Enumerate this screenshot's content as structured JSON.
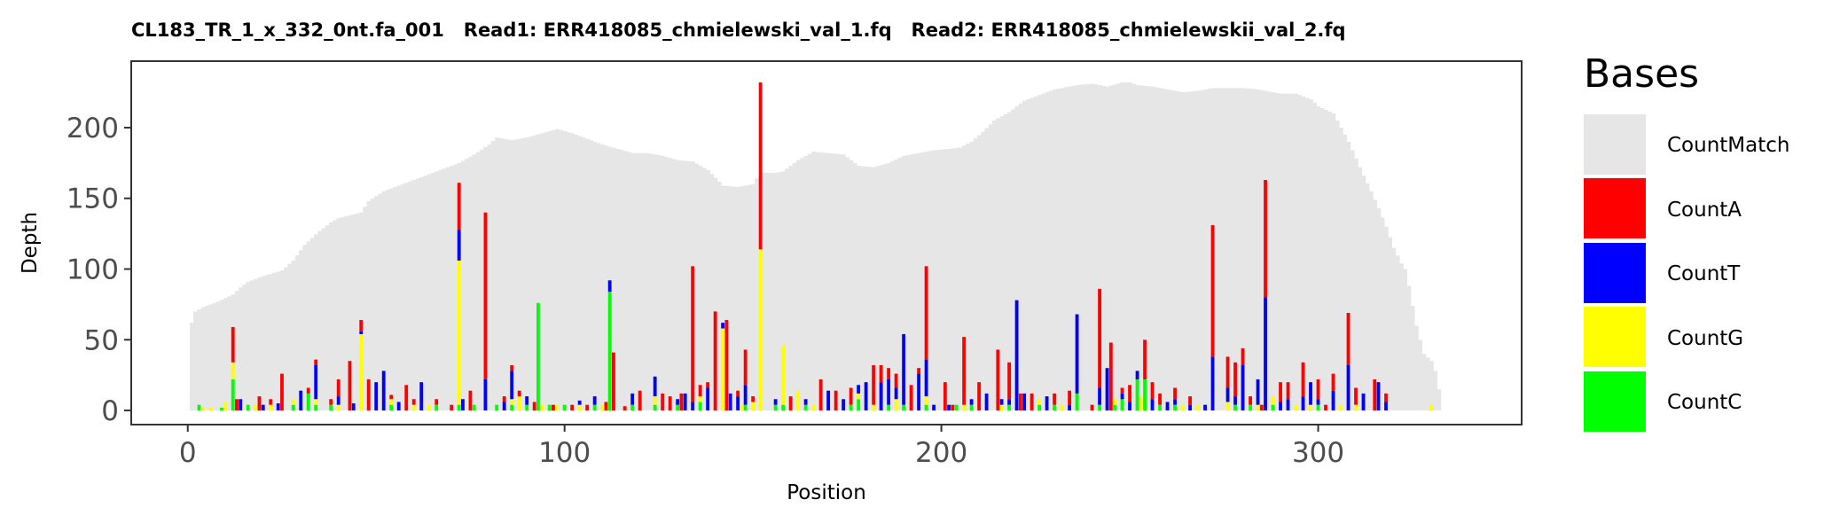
{
  "chart_data": {
    "type": "bar",
    "title": "CL183_TR_1_x_332_0nt.fa_001   Read1: ERR418085_chmielewski_val_1.fq   Read2: ERR418085_chmielewskii_val_2.fq",
    "xlabel": "Position",
    "ylabel": "Depth",
    "xlim": [
      -15,
      354
    ],
    "ylim": [
      -10,
      247
    ],
    "xticks": [
      0,
      100,
      200,
      300
    ],
    "yticks": [
      0,
      50,
      100,
      150,
      200
    ],
    "grid": false,
    "stacked": true,
    "legend": {
      "title": "Bases",
      "placement": "right",
      "entries": [
        "CountMatch",
        "CountA",
        "CountT",
        "CountG",
        "CountC"
      ]
    },
    "colors": {
      "CountMatch": "#e6e6e6",
      "CountA": "#ff0000",
      "CountT": "#0000ff",
      "CountG": "#ffff00",
      "CountC": "#00ff00"
    },
    "match_depth_keypoints": [
      [
        1,
        62
      ],
      [
        2,
        70
      ],
      [
        4,
        73
      ],
      [
        8,
        77
      ],
      [
        12,
        82
      ],
      [
        14,
        87
      ],
      [
        16,
        91
      ],
      [
        20,
        95
      ],
      [
        25,
        99
      ],
      [
        28,
        106
      ],
      [
        31,
        117
      ],
      [
        35,
        127
      ],
      [
        38,
        133
      ],
      [
        40,
        136
      ],
      [
        46,
        140
      ],
      [
        48,
        148
      ],
      [
        52,
        155
      ],
      [
        56,
        159
      ],
      [
        60,
        163
      ],
      [
        64,
        167
      ],
      [
        68,
        171
      ],
      [
        72,
        175
      ],
      [
        76,
        181
      ],
      [
        80,
        188
      ],
      [
        82,
        193
      ],
      [
        86,
        191
      ],
      [
        90,
        193
      ],
      [
        94,
        196
      ],
      [
        98,
        199
      ],
      [
        102,
        196
      ],
      [
        106,
        192
      ],
      [
        110,
        188
      ],
      [
        114,
        185
      ],
      [
        118,
        182
      ],
      [
        122,
        182
      ],
      [
        126,
        180
      ],
      [
        130,
        177
      ],
      [
        134,
        176
      ],
      [
        138,
        170
      ],
      [
        142,
        159
      ],
      [
        146,
        158
      ],
      [
        150,
        160
      ],
      [
        152,
        168
      ],
      [
        156,
        168
      ],
      [
        158,
        169
      ],
      [
        162,
        177
      ],
      [
        166,
        183
      ],
      [
        170,
        182
      ],
      [
        174,
        181
      ],
      [
        178,
        173
      ],
      [
        182,
        172
      ],
      [
        186,
        175
      ],
      [
        190,
        180
      ],
      [
        194,
        182
      ],
      [
        198,
        184
      ],
      [
        202,
        185
      ],
      [
        205,
        186
      ],
      [
        208,
        190
      ],
      [
        211,
        197
      ],
      [
        214,
        205
      ],
      [
        218,
        211
      ],
      [
        222,
        219
      ],
      [
        226,
        223
      ],
      [
        230,
        227
      ],
      [
        234,
        229
      ],
      [
        236,
        230
      ],
      [
        240,
        231
      ],
      [
        244,
        229
      ],
      [
        248,
        232
      ],
      [
        250,
        232
      ],
      [
        252,
        230
      ],
      [
        256,
        229
      ],
      [
        260,
        227
      ],
      [
        264,
        225
      ],
      [
        268,
        226
      ],
      [
        272,
        228
      ],
      [
        276,
        228
      ],
      [
        280,
        228
      ],
      [
        284,
        227
      ],
      [
        286,
        226
      ],
      [
        290,
        224
      ],
      [
        294,
        224
      ],
      [
        298,
        220
      ],
      [
        300,
        215
      ],
      [
        304,
        210
      ],
      [
        306,
        200
      ],
      [
        308,
        190
      ],
      [
        310,
        178
      ],
      [
        312,
        166
      ],
      [
        314,
        155
      ],
      [
        316,
        143
      ],
      [
        318,
        130
      ],
      [
        320,
        115
      ],
      [
        322,
        104
      ],
      [
        323,
        100
      ],
      [
        324,
        88
      ],
      [
        326,
        60
      ],
      [
        328,
        40
      ],
      [
        330,
        35
      ],
      [
        331,
        28
      ],
      [
        332,
        15
      ]
    ],
    "mismatch_series": {
      "CountA": [
        [
          12,
          25
        ],
        [
          13,
          8
        ],
        [
          19,
          10
        ],
        [
          22,
          4
        ],
        [
          25,
          26
        ],
        [
          32,
          4
        ],
        [
          34,
          4
        ],
        [
          38,
          4
        ],
        [
          40,
          12
        ],
        [
          43,
          35
        ],
        [
          46,
          8
        ],
        [
          48,
          22
        ],
        [
          54,
          3
        ],
        [
          58,
          18
        ],
        [
          60,
          4
        ],
        [
          66,
          4
        ],
        [
          70,
          4
        ],
        [
          72,
          33
        ],
        [
          75,
          14
        ],
        [
          79,
          118
        ],
        [
          84,
          4
        ],
        [
          86,
          4
        ],
        [
          88,
          4
        ],
        [
          92,
          6
        ],
        [
          97,
          4
        ],
        [
          102,
          4
        ],
        [
          106,
          4
        ],
        [
          111,
          6
        ],
        [
          113,
          41
        ],
        [
          116,
          3
        ],
        [
          120,
          14
        ],
        [
          126,
          12
        ],
        [
          128,
          10
        ],
        [
          131,
          12
        ],
        [
          134,
          96
        ],
        [
          136,
          8
        ],
        [
          138,
          4
        ],
        [
          140,
          70
        ],
        [
          143,
          64
        ],
        [
          146,
          4
        ],
        [
          148,
          25
        ],
        [
          150,
          4
        ],
        [
          152,
          118
        ],
        [
          160,
          10
        ],
        [
          168,
          22
        ],
        [
          172,
          14
        ],
        [
          176,
          12
        ],
        [
          182,
          28
        ],
        [
          184,
          12
        ],
        [
          186,
          8
        ],
        [
          188,
          10
        ],
        [
          192,
          18
        ],
        [
          194,
          4
        ],
        [
          196,
          66
        ],
        [
          201,
          20
        ],
        [
          203,
          4
        ],
        [
          206,
          48
        ],
        [
          210,
          20
        ],
        [
          215,
          43
        ],
        [
          218,
          26
        ],
        [
          221,
          12
        ],
        [
          224,
          12
        ],
        [
          230,
          8
        ],
        [
          234,
          10
        ],
        [
          240,
          4
        ],
        [
          242,
          70
        ],
        [
          245,
          48
        ],
        [
          248,
          4
        ],
        [
          250,
          12
        ],
        [
          254,
          28
        ],
        [
          256,
          12
        ],
        [
          258,
          8
        ],
        [
          262,
          8
        ],
        [
          266,
          6
        ],
        [
          272,
          93
        ],
        [
          276,
          22
        ],
        [
          278,
          24
        ],
        [
          280,
          12
        ],
        [
          282,
          6
        ],
        [
          285,
          4
        ],
        [
          286,
          83
        ],
        [
          290,
          14
        ],
        [
          292,
          12
        ],
        [
          296,
          24
        ],
        [
          300,
          14
        ],
        [
          302,
          4
        ],
        [
          304,
          12
        ],
        [
          308,
          37
        ],
        [
          310,
          12
        ],
        [
          315,
          22
        ],
        [
          318,
          6
        ]
      ],
      "CountT": [
        [
          14,
          8
        ],
        [
          20,
          4
        ],
        [
          24,
          5
        ],
        [
          30,
          14
        ],
        [
          34,
          24
        ],
        [
          40,
          6
        ],
        [
          44,
          5
        ],
        [
          46,
          2
        ],
        [
          50,
          20
        ],
        [
          52,
          28
        ],
        [
          56,
          6
        ],
        [
          62,
          20
        ],
        [
          72,
          22
        ],
        [
          73,
          8
        ],
        [
          79,
          22
        ],
        [
          84,
          6
        ],
        [
          86,
          20
        ],
        [
          90,
          6
        ],
        [
          104,
          3
        ],
        [
          108,
          6
        ],
        [
          112,
          8
        ],
        [
          118,
          8
        ],
        [
          124,
          14
        ],
        [
          130,
          4
        ],
        [
          132,
          12
        ],
        [
          134,
          6
        ],
        [
          138,
          16
        ],
        [
          142,
          4
        ],
        [
          144,
          12
        ],
        [
          146,
          10
        ],
        [
          148,
          14
        ],
        [
          156,
          4
        ],
        [
          164,
          4
        ],
        [
          170,
          14
        ],
        [
          174,
          8
        ],
        [
          178,
          6
        ],
        [
          180,
          20
        ],
        [
          184,
          20
        ],
        [
          186,
          18
        ],
        [
          188,
          8
        ],
        [
          190,
          50
        ],
        [
          194,
          26
        ],
        [
          196,
          26
        ],
        [
          198,
          4
        ],
        [
          202,
          4
        ],
        [
          208,
          4
        ],
        [
          212,
          12
        ],
        [
          216,
          4
        ],
        [
          218,
          4
        ],
        [
          220,
          78
        ],
        [
          222,
          12
        ],
        [
          228,
          10
        ],
        [
          234,
          4
        ],
        [
          236,
          56
        ],
        [
          242,
          12
        ],
        [
          244,
          30
        ],
        [
          248,
          4
        ],
        [
          250,
          6
        ],
        [
          252,
          6
        ],
        [
          256,
          8
        ],
        [
          260,
          6
        ],
        [
          262,
          4
        ],
        [
          266,
          4
        ],
        [
          270,
          4
        ],
        [
          272,
          38
        ],
        [
          276,
          10
        ],
        [
          278,
          6
        ],
        [
          280,
          32
        ],
        [
          284,
          18
        ],
        [
          286,
          80
        ],
        [
          290,
          6
        ],
        [
          292,
          8
        ],
        [
          296,
          10
        ],
        [
          298,
          16
        ],
        [
          300,
          4
        ],
        [
          304,
          14
        ],
        [
          308,
          32
        ],
        [
          312,
          12
        ],
        [
          316,
          20
        ],
        [
          318,
          6
        ]
      ],
      "CountG": [
        [
          4,
          2
        ],
        [
          6,
          2
        ],
        [
          10,
          6
        ],
        [
          12,
          12
        ],
        [
          18,
          4
        ],
        [
          22,
          4
        ],
        [
          28,
          4
        ],
        [
          34,
          4
        ],
        [
          40,
          4
        ],
        [
          46,
          54
        ],
        [
          54,
          4
        ],
        [
          60,
          4
        ],
        [
          64,
          4
        ],
        [
          72,
          102
        ],
        [
          86,
          4
        ],
        [
          88,
          10
        ],
        [
          94,
          4
        ],
        [
          98,
          4
        ],
        [
          104,
          4
        ],
        [
          110,
          4
        ],
        [
          124,
          6
        ],
        [
          136,
          4
        ],
        [
          142,
          58
        ],
        [
          147,
          4
        ],
        [
          150,
          6
        ],
        [
          152,
          114
        ],
        [
          158,
          42
        ],
        [
          162,
          14
        ],
        [
          166,
          4
        ],
        [
          178,
          4
        ],
        [
          182,
          4
        ],
        [
          188,
          8
        ],
        [
          196,
          6
        ],
        [
          206,
          4
        ],
        [
          216,
          4
        ],
        [
          226,
          4
        ],
        [
          232,
          4
        ],
        [
          246,
          4
        ],
        [
          253,
          10
        ],
        [
          264,
          4
        ],
        [
          268,
          4
        ],
        [
          276,
          6
        ],
        [
          284,
          4
        ],
        [
          288,
          6
        ],
        [
          294,
          4
        ],
        [
          298,
          4
        ],
        [
          306,
          4
        ],
        [
          310,
          4
        ],
        [
          330,
          4
        ]
      ],
      "CountC": [
        [
          3,
          4
        ],
        [
          9,
          2
        ],
        [
          12,
          22
        ],
        [
          16,
          4
        ],
        [
          28,
          4
        ],
        [
          32,
          12
        ],
        [
          34,
          4
        ],
        [
          38,
          4
        ],
        [
          54,
          4
        ],
        [
          66,
          4
        ],
        [
          72,
          4
        ],
        [
          76,
          4
        ],
        [
          82,
          4
        ],
        [
          86,
          4
        ],
        [
          90,
          4
        ],
        [
          93,
          76
        ],
        [
          96,
          4
        ],
        [
          100,
          4
        ],
        [
          108,
          4
        ],
        [
          112,
          84
        ],
        [
          118,
          4
        ],
        [
          124,
          4
        ],
        [
          130,
          4
        ],
        [
          136,
          6
        ],
        [
          148,
          4
        ],
        [
          156,
          4
        ],
        [
          158,
          4
        ],
        [
          164,
          4
        ],
        [
          176,
          4
        ],
        [
          178,
          8
        ],
        [
          186,
          4
        ],
        [
          190,
          4
        ],
        [
          196,
          4
        ],
        [
          204,
          4
        ],
        [
          208,
          4
        ],
        [
          218,
          4
        ],
        [
          226,
          4
        ],
        [
          230,
          4
        ],
        [
          236,
          12
        ],
        [
          242,
          4
        ],
        [
          246,
          4
        ],
        [
          248,
          8
        ],
        [
          252,
          22
        ],
        [
          254,
          22
        ],
        [
          258,
          4
        ],
        [
          262,
          4
        ],
        [
          278,
          4
        ],
        [
          282,
          4
        ],
        [
          288,
          4
        ],
        [
          300,
          4
        ]
      ]
    }
  }
}
